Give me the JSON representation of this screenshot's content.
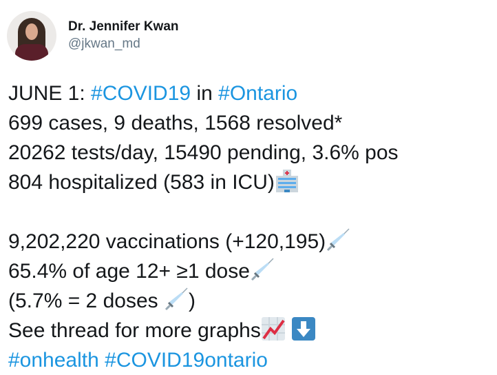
{
  "author": {
    "name": "Dr. Jennifer Kwan",
    "handle": "@jkwan_md"
  },
  "tweet": {
    "l1_pre": "JUNE 1: ",
    "l1_tag1": "#COVID19",
    "l1_mid": " in ",
    "l1_tag2": "#Ontario",
    "l2": "699 cases, 9 deaths, 1568 resolved*",
    "l3": "20262 tests/day, 15490 pending, 3.6% pos",
    "l4": "804 hospitalized (583 in ICU)",
    "l5": "9,202,220 vaccinations (+120,195)",
    "l6": "65.4% of age 12+ ≥1 dose",
    "l7a": "(5.7% = 2 doses ",
    "l7b": ")",
    "l8": "See thread for more graphs",
    "tag3": "#onhealth",
    "tag4": "#COVID19ontario"
  },
  "icons": {
    "hospital": "hospital-emoji",
    "syringe": "syringe-emoji",
    "chart": "chart-increasing-emoji",
    "down": "down-arrow-emoji"
  },
  "colors": {
    "hashtag": "#1b95e0",
    "text": "#14171a",
    "handle": "#657786"
  }
}
